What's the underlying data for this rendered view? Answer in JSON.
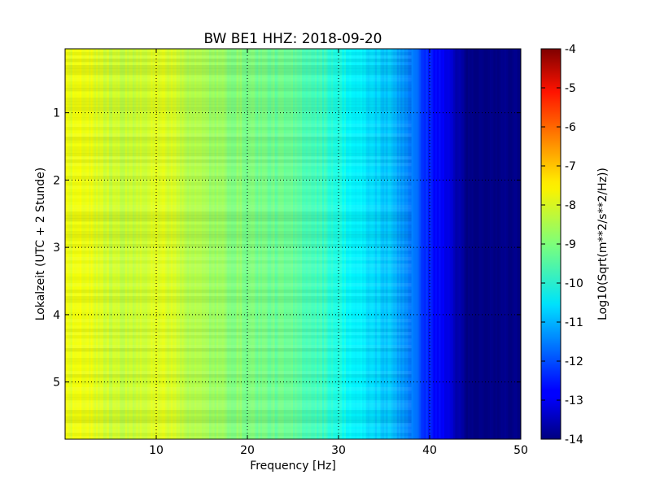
{
  "chart_data": {
    "type": "heatmap",
    "title": "BW BE1 HHZ: 2018-09-20",
    "xlabel": "Frequency [Hz]",
    "ylabel": "Lokalzeit (UTC + 2 Stunde)",
    "xlim": [
      0,
      50
    ],
    "ylim": [
      5.85,
      0.05
    ],
    "x_ticks": [
      "10",
      "20",
      "30",
      "40",
      "50"
    ],
    "y_ticks": [
      "1",
      "2",
      "3",
      "4",
      "5"
    ],
    "grid": true,
    "colorbar": {
      "label": "Log10(Sqrt(m**2/s**2/Hz))",
      "range": [
        -14,
        -4
      ],
      "ticks": [
        "-4",
        "-5",
        "-6",
        "-7",
        "-8",
        "-9",
        "-10",
        "-11",
        "-12",
        "-13",
        "-14"
      ],
      "colormap": "jet"
    },
    "frequency_profile": {
      "frequency_hz": [
        0,
        2,
        5,
        8,
        10,
        12,
        15,
        20,
        25,
        28,
        30,
        31,
        32,
        34,
        36,
        38,
        40,
        42,
        43,
        44,
        45,
        50
      ],
      "log10_value": [
        -8.0,
        -7.9,
        -8.2,
        -8.3,
        -8.0,
        -8.2,
        -8.6,
        -9.0,
        -9.3,
        -9.6,
        -10.0,
        -10.2,
        -10.4,
        -10.6,
        -10.9,
        -11.5,
        -12.5,
        -13.0,
        -13.5,
        -14.0,
        -14.0,
        -14.0
      ]
    }
  }
}
